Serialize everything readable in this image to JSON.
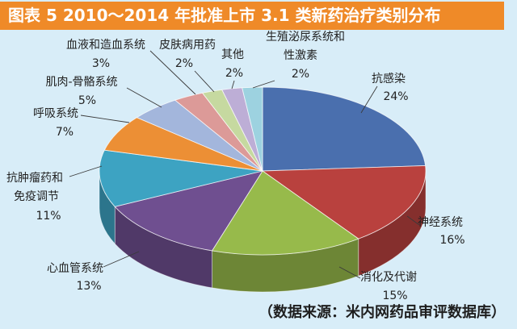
{
  "chart_data": {
    "type": "pie",
    "style": "3d",
    "title": "图表 5 2010～2014 年批准上市 3.1 类新药治疗类别分布",
    "categories": [
      "抗感染",
      "神经系统",
      "消化及代谢",
      "心血管系统",
      "抗肿瘤药和免疫调节",
      "呼吸系统",
      "肌肉-骨骼系统",
      "血液和造血系统",
      "皮肤病用药",
      "其他",
      "生殖泌尿系统和性激素"
    ],
    "values": [
      24,
      16,
      15,
      13,
      11,
      7,
      5,
      3,
      2,
      2,
      2
    ],
    "unit": "%",
    "colors": [
      "#4a6fae",
      "#b9413e",
      "#97ba4b",
      "#6f4f90",
      "#3da3c2",
      "#ec8f35",
      "#a3b6dc",
      "#dc9a98",
      "#c6d9a0",
      "#bdaed6",
      "#9dd2e0"
    ],
    "label_style": "outside-with-leader-lines",
    "legend": "none"
  },
  "source": "（数据来源：米内网药品审评数据库）",
  "theme": {
    "header_color": "#ef8a28",
    "background_color": "#d8edf8"
  }
}
